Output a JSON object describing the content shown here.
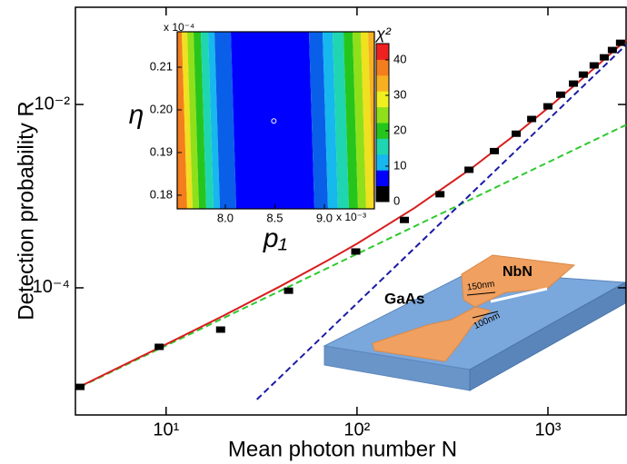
{
  "chart_data": [
    {
      "type": "scatter-lines",
      "xlabel": "Mean photon number N",
      "ylabel": "Detection probability R",
      "log_x": true,
      "log_y": true,
      "xlim": [
        3.35,
        2567
      ],
      "ylim": [
        4.1e-06,
        0.115
      ],
      "xticks": [
        {
          "value": 10,
          "label": "10¹"
        },
        {
          "value": 100,
          "label": "10²"
        },
        {
          "value": 1000,
          "label": "10³"
        }
      ],
      "yticks": [
        {
          "value": 0.0001,
          "label": "10⁻⁴"
        },
        {
          "value": 0.01,
          "label": "10⁻²"
        }
      ],
      "series": [
        {
          "style": "markers",
          "color": "#000000",
          "x": [
            3.54,
            9.2,
            19.3,
            43.8,
            98.5,
            177,
            272,
            386,
            524,
            682,
            822,
            1000,
            1166,
            1360,
            1532,
            1746,
            1972,
            2175,
            2400
          ],
          "values": [
            8.3e-06,
            2.27e-05,
            3.5e-05,
            9.3e-05,
            0.000249,
            0.00055,
            0.00105,
            0.00194,
            0.0031,
            0.0048,
            0.00695,
            0.00955,
            0.0128,
            0.0169,
            0.0212,
            0.0267,
            0.0327,
            0.0393,
            0.0471
          ]
        },
        {
          "style": "dash",
          "color": "#2eca2e",
          "x": [
            3.54,
            2567
          ],
          "values": [
            8.3e-06,
            0.006
          ]
        },
        {
          "style": "dash",
          "color": "#1a1aa6",
          "x": [
            29.9,
            2567
          ],
          "values": [
            6.05e-06,
            0.0446
          ]
        },
        {
          "style": "solid",
          "color": "#d81e1e",
          "x": [
            3.54,
            10,
            20,
            40,
            70,
            100,
            200,
            400,
            700,
            1000,
            1500,
            2000,
            2567
          ],
          "values": [
            8.4e-06,
            2.42e-05,
            4.97e-05,
            0.000105,
            0.000198,
            0.000303,
            0.000742,
            0.00203,
            0.00498,
            0.00915,
            0.0188,
            0.0319,
            0.0506
          ]
        }
      ]
    },
    {
      "type": "contour",
      "xlabel": "p₁",
      "ylabel": "η",
      "xlim": [
        7.514,
        9.505
      ],
      "ylim": [
        0.1768,
        0.2183
      ],
      "xticks": [
        {
          "value": 8,
          "label": "8.0"
        },
        8.5,
        {
          "value": 9,
          "label": "9.0"
        }
      ],
      "yticks": [
        0.18,
        0.19,
        {
          "value": 0.2,
          "label": "0.20"
        },
        0.21
      ],
      "x_multiplier": "x 10⁻³",
      "y_multiplier": "x 10⁻⁴",
      "best_fit": {
        "x": 8.49,
        "y": 0.1974
      },
      "colorbar": {
        "label": "χ²",
        "lim": [
          0,
          44.6
        ],
        "ticks": [
          0,
          10,
          20,
          30,
          40
        ],
        "colors": [
          "#000000",
          "#0000ff",
          "#16b8ee",
          "#1fd6b0",
          "#26c51c",
          "#8fe01a",
          "#f0f020",
          "#f7b120",
          "#f47e1e",
          "#ee2020"
        ]
      }
    }
  ],
  "diagram": {
    "labels": [
      "GaAs",
      "NbN",
      "150nm",
      "100nm"
    ]
  }
}
